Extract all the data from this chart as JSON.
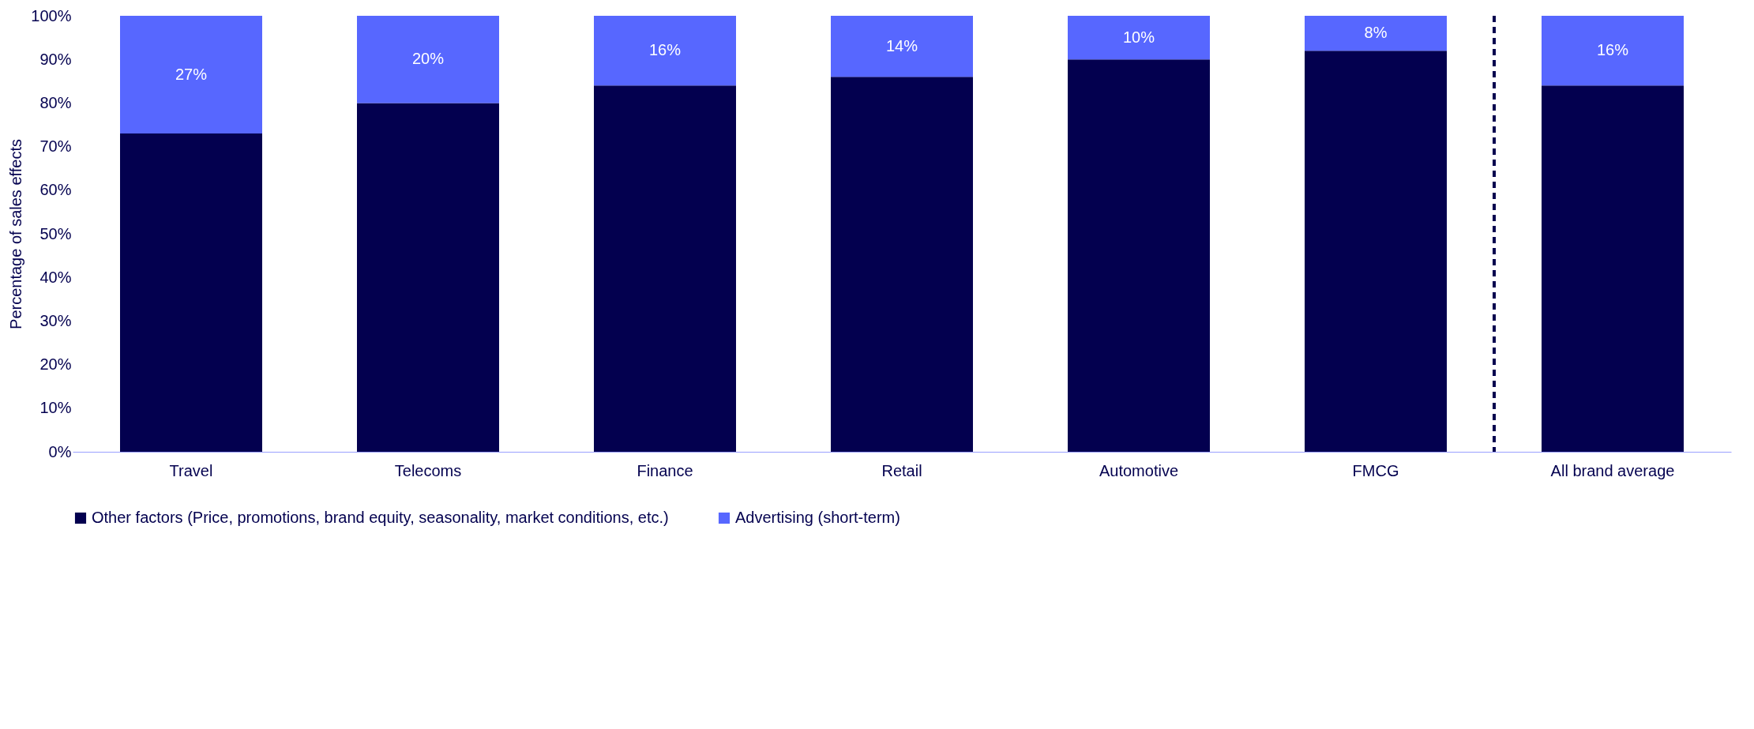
{
  "chart_data": {
    "type": "bar",
    "stacked": true,
    "ylabel": "Percentage of sales effects",
    "categories": [
      "Travel",
      "Telecoms",
      "Finance",
      "Retail",
      "Automotive",
      "FMCG",
      "All brand average"
    ],
    "series": [
      {
        "name": "Other factors (Price, promotions, brand equity, seasonality, market conditions, etc.)",
        "color": "#03004f",
        "values": [
          73,
          80,
          84,
          86,
          90,
          92,
          84
        ]
      },
      {
        "name": "Advertising (short-term)",
        "color": "#5767ff",
        "values": [
          27,
          20,
          16,
          14,
          10,
          8,
          16
        ],
        "value_labels": [
          "27%",
          "20%",
          "16%",
          "14%",
          "10%",
          "8%",
          "16%"
        ]
      }
    ],
    "ylim": [
      0,
      100
    ],
    "yticks": [
      {
        "value": 0,
        "label": "0%"
      },
      {
        "value": 10,
        "label": "10%"
      },
      {
        "value": 20,
        "label": "20%"
      },
      {
        "value": 30,
        "label": "30%"
      },
      {
        "value": 40,
        "label": "40%"
      },
      {
        "value": 50,
        "label": "50%"
      },
      {
        "value": 60,
        "label": "60%"
      },
      {
        "value": 70,
        "label": "70%"
      },
      {
        "value": 80,
        "label": "80%"
      },
      {
        "value": 90,
        "label": "90%"
      },
      {
        "value": 100,
        "label": "100%"
      }
    ],
    "ref_lines": [
      {
        "axis": "x",
        "value": "All brand average",
        "color": "#03004f",
        "line_style": "dashed"
      }
    ],
    "grid": false,
    "legend": "bottom"
  }
}
